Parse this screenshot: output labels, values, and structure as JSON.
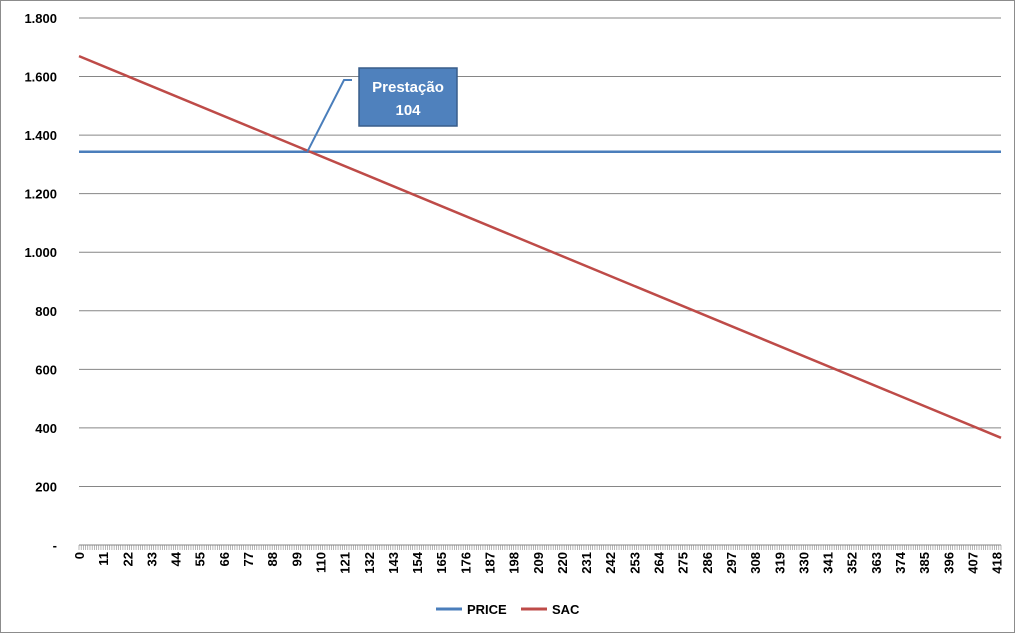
{
  "chart_data": {
    "type": "line",
    "title": "",
    "xlabel": "",
    "ylabel": "",
    "xlim": [
      0,
      420
    ],
    "ylim": [
      0,
      1800
    ],
    "y_ticks": [
      0,
      200,
      400,
      600,
      800,
      1000,
      1200,
      1400,
      1600,
      1800
    ],
    "y_tick_labels": [
      "-",
      "200",
      "400",
      "600",
      "800",
      "1.000",
      "1.200",
      "1.400",
      "1.600",
      "1.800"
    ],
    "x_tick_labels": [
      "0",
      "11",
      "22",
      "33",
      "44",
      "55",
      "66",
      "77",
      "88",
      "99",
      "110",
      "121",
      "132",
      "143",
      "154",
      "165",
      "176",
      "187",
      "198",
      "209",
      "220",
      "231",
      "242",
      "253",
      "264",
      "275",
      "286",
      "297",
      "308",
      "319",
      "330",
      "341",
      "352",
      "363",
      "374",
      "385",
      "396",
      "407",
      "418"
    ],
    "grid": "horizontal",
    "legend_position": "bottom",
    "series": [
      {
        "name": "PRICE",
        "color": "#4a7ebb",
        "x": [
          0,
          420
        ],
        "y": [
          1343,
          1343
        ]
      },
      {
        "name": "SAC",
        "color": "#be4b48",
        "x": [
          0,
          420
        ],
        "y": [
          1670,
          366
        ]
      }
    ],
    "annotations": [
      {
        "line1": "Prestação",
        "line2": "104",
        "x": 104,
        "y": 1343
      }
    ]
  }
}
